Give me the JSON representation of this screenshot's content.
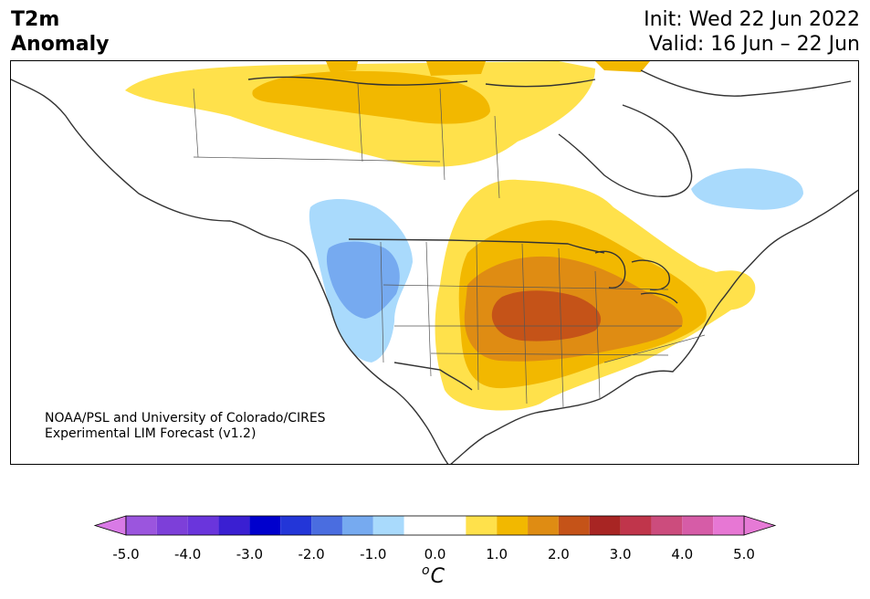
{
  "title": {
    "line1": "T2m",
    "line2": "Anomaly",
    "init": "Init: Wed 22 Jun 2022",
    "valid": "Valid: 16 Jun – 22 Jun"
  },
  "credit": {
    "line1": "NOAA/PSL and University of Colorado/CIRES",
    "line2": "Experimental LIM Forecast (v1.2)"
  },
  "colorbar": {
    "unit_super": "o",
    "unit": "C",
    "ticks": [
      "-5.0",
      "-4.0",
      "-3.0",
      "-2.0",
      "-1.0",
      "0.0",
      "1.0",
      "2.0",
      "3.0",
      "4.0",
      "5.0"
    ],
    "bins": [
      {
        "from": -5.0,
        "to": -4.5,
        "color": "#9b55de"
      },
      {
        "from": -4.5,
        "to": -4.0,
        "color": "#7d3fd9"
      },
      {
        "from": -4.0,
        "to": -3.5,
        "color": "#6a35dc"
      },
      {
        "from": -3.5,
        "to": -3.0,
        "color": "#3a1fd2"
      },
      {
        "from": -3.0,
        "to": -2.5,
        "color": "#0000cd"
      },
      {
        "from": -2.5,
        "to": -2.0,
        "color": "#2336d8"
      },
      {
        "from": -2.0,
        "to": -1.5,
        "color": "#4a6de0"
      },
      {
        "from": -1.5,
        "to": -1.0,
        "color": "#76aaf0"
      },
      {
        "from": -1.0,
        "to": -0.5,
        "color": "#a9dafc"
      },
      {
        "from": -0.5,
        "to": 0.5,
        "color": "#ffffff"
      },
      {
        "from": 0.5,
        "to": 1.0,
        "color": "#ffe14b"
      },
      {
        "from": 1.0,
        "to": 1.5,
        "color": "#f2b800"
      },
      {
        "from": 1.5,
        "to": 2.0,
        "color": "#df8c13"
      },
      {
        "from": 2.0,
        "to": 2.5,
        "color": "#c55318"
      },
      {
        "from": 2.5,
        "to": 3.0,
        "color": "#a82523"
      },
      {
        "from": 3.0,
        "to": 3.5,
        "color": "#c0354b"
      },
      {
        "from": 3.5,
        "to": 4.0,
        "color": "#cc4c7d"
      },
      {
        "from": 4.0,
        "to": 4.5,
        "color": "#d65ca7"
      },
      {
        "from": 4.5,
        "to": 5.0,
        "color": "#e777d4"
      }
    ],
    "under_color": "#d97ae6",
    "over_color": "#e67ad6"
  }
}
